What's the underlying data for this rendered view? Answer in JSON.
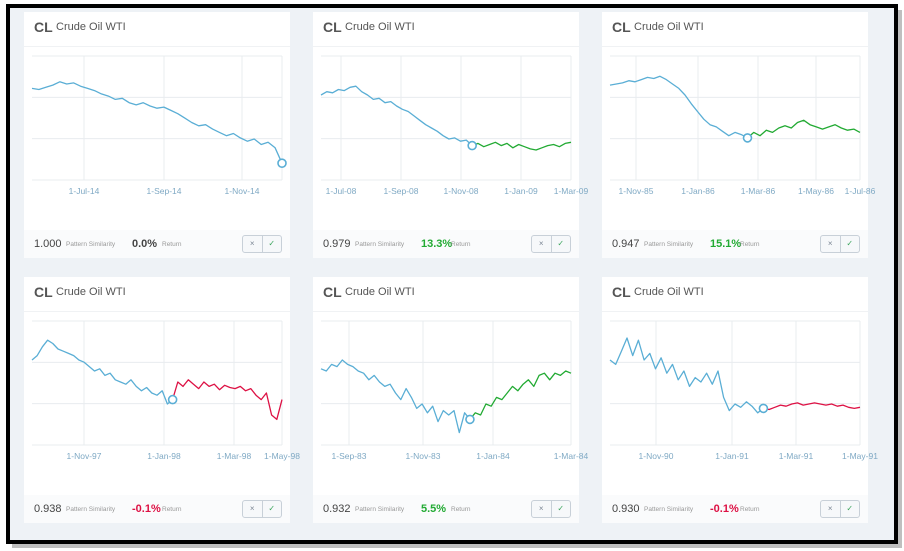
{
  "colors": {
    "pattern": "#5aaed5",
    "positive": "#22aa33",
    "negative": "#dd1144",
    "grid": "#e8ecef",
    "tick_text": "#7fa9c4"
  },
  "icons": {
    "dismiss": "×",
    "confirm": "✓"
  },
  "cards": [
    {
      "ticker": "CL",
      "name": "Crude Oil WTI",
      "similarity": "1.000",
      "similarity_label": "Pattern Similarity",
      "return": "0.0%",
      "return_label": "Return",
      "return_tone": "neutral",
      "chart_data": {
        "type": "line",
        "x_ticks": [
          "1-Jul-14",
          "1-Sep-14",
          "1-Nov-14"
        ],
        "y_range": [
          0,
          1
        ],
        "pattern": [
          0.76,
          0.75,
          0.77,
          0.79,
          0.82,
          0.8,
          0.81,
          0.78,
          0.76,
          0.74,
          0.71,
          0.69,
          0.66,
          0.67,
          0.63,
          0.61,
          0.63,
          0.6,
          0.58,
          0.59,
          0.56,
          0.53,
          0.49,
          0.45,
          0.42,
          0.43,
          0.39,
          0.36,
          0.33,
          0.35,
          0.31,
          0.28,
          0.3,
          0.25,
          0.27,
          0.22,
          0.08
        ],
        "projection": [],
        "projection_tone": "none"
      }
    },
    {
      "ticker": "CL",
      "name": "Crude Oil WTI",
      "similarity": "0.979",
      "similarity_label": "Pattern Similarity",
      "return": "13.3%",
      "return_label": "Return",
      "return_tone": "positive",
      "chart_data": {
        "type": "line",
        "x_ticks": [
          "1-Jul-08",
          "1-Sep-08",
          "1-Nov-08",
          "1-Jan-09",
          "1-Mar-09"
        ],
        "y_range": [
          0,
          1
        ],
        "pattern": [
          0.7,
          0.73,
          0.72,
          0.75,
          0.74,
          0.77,
          0.78,
          0.73,
          0.7,
          0.66,
          0.67,
          0.63,
          0.64,
          0.6,
          0.57,
          0.55,
          0.51,
          0.47,
          0.43,
          0.4,
          0.37,
          0.33,
          0.3,
          0.31,
          0.28,
          0.29,
          0.24
        ],
        "projection": [
          0.24,
          0.26,
          0.23,
          0.25,
          0.27,
          0.24,
          0.26,
          0.22,
          0.25,
          0.23,
          0.21,
          0.2,
          0.22,
          0.24,
          0.25,
          0.23,
          0.26,
          0.27
        ],
        "projection_tone": "positive"
      }
    },
    {
      "ticker": "CL",
      "name": "Crude Oil WTI",
      "similarity": "0.947",
      "similarity_label": "Pattern Similarity",
      "return": "15.1%",
      "return_label": "Return",
      "return_tone": "positive",
      "chart_data": {
        "type": "line",
        "x_ticks": [
          "1-Nov-85",
          "1-Jan-86",
          "1-Mar-86",
          "1-May-86",
          "1-Jul-86"
        ],
        "y_range": [
          0,
          1
        ],
        "pattern": [
          0.79,
          0.8,
          0.81,
          0.83,
          0.82,
          0.84,
          0.86,
          0.85,
          0.87,
          0.84,
          0.8,
          0.76,
          0.7,
          0.62,
          0.55,
          0.48,
          0.43,
          0.41,
          0.37,
          0.33,
          0.36,
          0.34,
          0.31
        ],
        "projection": [
          0.31,
          0.36,
          0.33,
          0.38,
          0.36,
          0.4,
          0.42,
          0.4,
          0.45,
          0.47,
          0.43,
          0.41,
          0.39,
          0.41,
          0.43,
          0.4,
          0.38,
          0.39,
          0.36
        ],
        "projection_tone": "positive"
      }
    },
    {
      "ticker": "CL",
      "name": "Crude Oil WTI",
      "similarity": "0.938",
      "similarity_label": "Pattern Similarity",
      "return": "-0.1%",
      "return_label": "Return",
      "return_tone": "negative",
      "chart_data": {
        "type": "line",
        "x_ticks": [
          "1-Nov-97",
          "1-Jan-98",
          "1-Mar-98",
          "1-May-98"
        ],
        "y_range": [
          0,
          1
        ],
        "pattern": [
          0.7,
          0.74,
          0.82,
          0.88,
          0.85,
          0.8,
          0.78,
          0.76,
          0.74,
          0.7,
          0.68,
          0.64,
          0.6,
          0.62,
          0.56,
          0.58,
          0.52,
          0.5,
          0.48,
          0.52,
          0.46,
          0.42,
          0.45,
          0.4,
          0.38,
          0.42,
          0.3,
          0.34
        ],
        "projection": [
          0.34,
          0.5,
          0.46,
          0.52,
          0.48,
          0.44,
          0.5,
          0.46,
          0.48,
          0.43,
          0.47,
          0.45,
          0.44,
          0.46,
          0.42,
          0.44,
          0.38,
          0.34,
          0.4,
          0.2,
          0.16,
          0.34
        ],
        "projection_tone": "negative"
      }
    },
    {
      "ticker": "CL",
      "name": "Crude Oil WTI",
      "similarity": "0.932",
      "similarity_label": "Pattern Similarity",
      "return": "5.5%",
      "return_label": "Return",
      "return_tone": "positive",
      "chart_data": {
        "type": "line",
        "x_ticks": [
          "1-Sep-83",
          "1-Nov-83",
          "1-Jan-84",
          "1-Mar-84"
        ],
        "y_range": [
          0,
          1
        ],
        "pattern": [
          0.62,
          0.6,
          0.66,
          0.64,
          0.7,
          0.66,
          0.64,
          0.6,
          0.58,
          0.52,
          0.56,
          0.5,
          0.46,
          0.48,
          0.4,
          0.34,
          0.44,
          0.36,
          0.26,
          0.3,
          0.22,
          0.28,
          0.14,
          0.24,
          0.2,
          0.24,
          0.04,
          0.22,
          0.16
        ],
        "projection": [
          0.16,
          0.22,
          0.2,
          0.3,
          0.28,
          0.36,
          0.34,
          0.4,
          0.46,
          0.42,
          0.48,
          0.52,
          0.46,
          0.56,
          0.58,
          0.52,
          0.58,
          0.56,
          0.6,
          0.58
        ],
        "projection_tone": "positive"
      }
    },
    {
      "ticker": "CL",
      "name": "Crude Oil WTI",
      "similarity": "0.930",
      "similarity_label": "Pattern Similarity",
      "return": "-0.1%",
      "return_label": "Return",
      "return_tone": "negative",
      "chart_data": {
        "type": "line",
        "x_ticks": [
          "1-Nov-90",
          "1-Jan-91",
          "1-Mar-91",
          "1-May-91"
        ],
        "y_range": [
          0,
          1
        ],
        "pattern": [
          0.7,
          0.66,
          0.78,
          0.9,
          0.74,
          0.88,
          0.7,
          0.76,
          0.62,
          0.72,
          0.58,
          0.66,
          0.52,
          0.6,
          0.46,
          0.54,
          0.5,
          0.58,
          0.48,
          0.6,
          0.36,
          0.24,
          0.3,
          0.27,
          0.32,
          0.28,
          0.22,
          0.26
        ],
        "projection": [
          0.26,
          0.25,
          0.27,
          0.29,
          0.28,
          0.3,
          0.31,
          0.29,
          0.3,
          0.31,
          0.3,
          0.29,
          0.3,
          0.28,
          0.29,
          0.27,
          0.26,
          0.27
        ],
        "projection_tone": "negative"
      }
    }
  ]
}
